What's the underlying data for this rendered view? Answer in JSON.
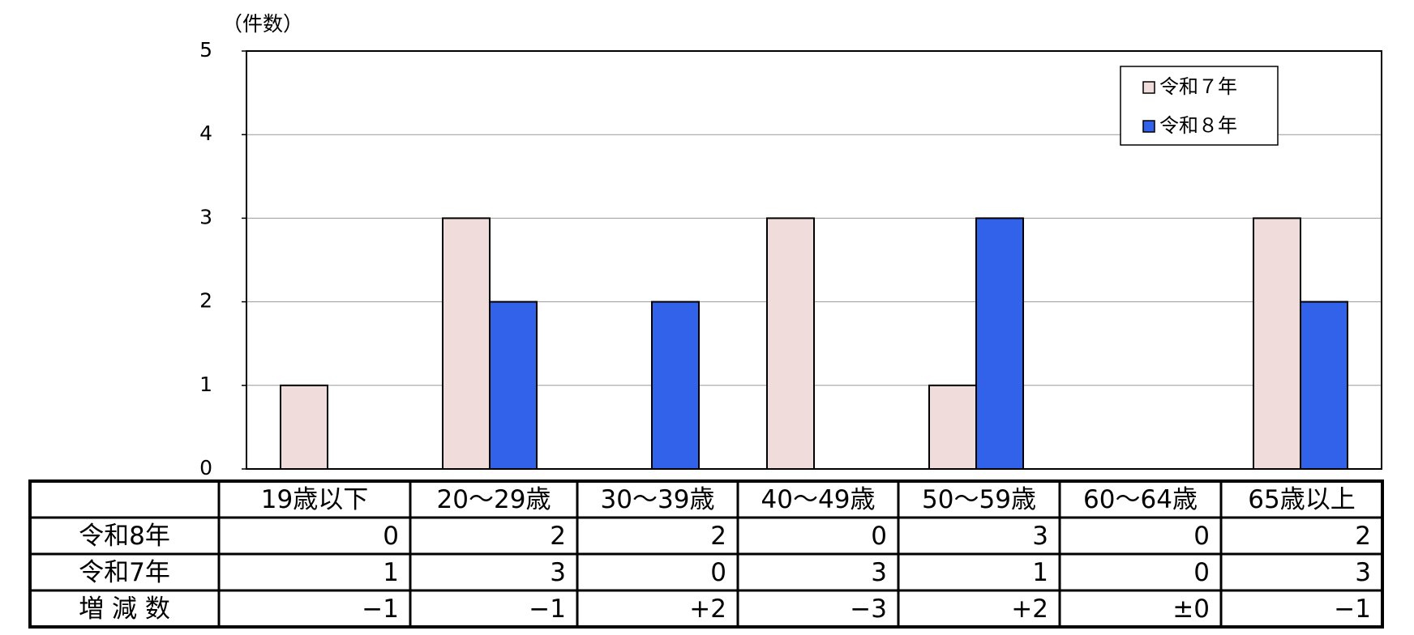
{
  "chart_data": {
    "type": "bar",
    "y_label": "（件数）",
    "categories": [
      "19歳以下",
      "20～29歳",
      "30～39歳",
      "40～49歳",
      "50～59歳",
      "60～64歳",
      "65歳以上"
    ],
    "series": [
      {
        "name": "令和７年",
        "color": "#f0dcda",
        "values": [
          1,
          3,
          0,
          3,
          1,
          0,
          3
        ]
      },
      {
        "name": "令和８年",
        "color": "#3262ea",
        "values": [
          0,
          2,
          2,
          0,
          3,
          0,
          2
        ]
      }
    ],
    "ylim": [
      0,
      5
    ],
    "yticks": [
      0,
      1,
      2,
      3,
      4,
      5
    ],
    "grid": true,
    "legend": "top-right",
    "table": {
      "row_labels": [
        "令和8年",
        "令和7年",
        "増 減 数"
      ],
      "change": [
        "−1",
        "−1",
        "+2",
        "−3",
        "+2",
        "±0",
        "−1"
      ]
    }
  }
}
